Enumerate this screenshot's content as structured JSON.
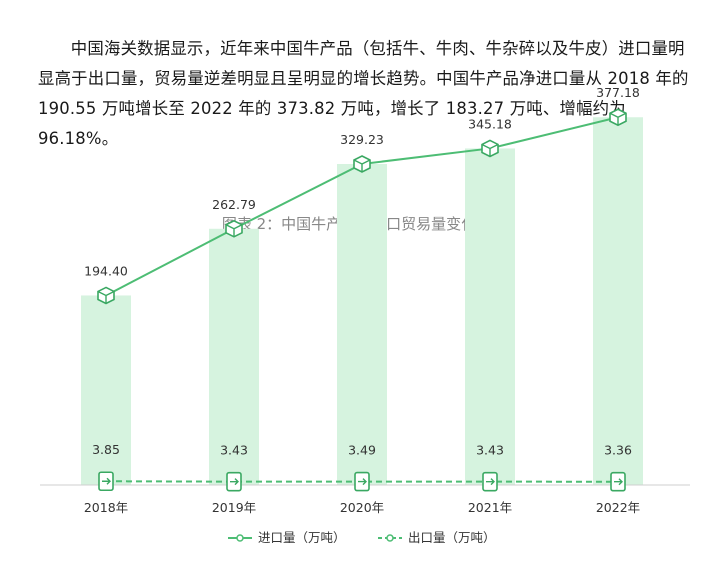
{
  "article": {
    "paragraph": "中国海关数据显示，近年来中国牛产品（包括牛、牛肉、牛杂碎以及牛皮）进口量明显高于出口量，贸易量逆差明显且呈明显的增长趋势。中国牛产品净进口量从 2018 年的 190.55 万吨增长至 2022 年的 373.82 万吨，增长了 183.27 万吨、增幅约为 96.18%。"
  },
  "chart_data": {
    "type": "bar+line",
    "title": "图表 2：中国牛产品进出口贸易量变化趋势",
    "categories": [
      "2018年",
      "2019年",
      "2020年",
      "2021年",
      "2022年"
    ],
    "series": [
      {
        "name": "进口量（万吨）",
        "values": [
          194.4,
          262.79,
          329.23,
          345.18,
          377.18
        ],
        "labels": [
          "194.40",
          "262.79",
          "329.23",
          "345.18",
          "377.18"
        ],
        "style": "bar+solid-line"
      },
      {
        "name": "出口量（万吨）",
        "values": [
          3.85,
          3.43,
          3.49,
          3.43,
          3.36
        ],
        "labels": [
          "3.85",
          "3.43",
          "3.49",
          "3.43",
          "3.36"
        ],
        "style": "dashed-line"
      }
    ],
    "ylim": [
      0,
      400
    ],
    "xlabel": "",
    "ylabel": "",
    "legend_position": "bottom-center",
    "colors": {
      "bar": "#d6f3df",
      "line": "#4dbd74",
      "marker": "#3aa862",
      "axis": "#cfcfcf"
    }
  }
}
